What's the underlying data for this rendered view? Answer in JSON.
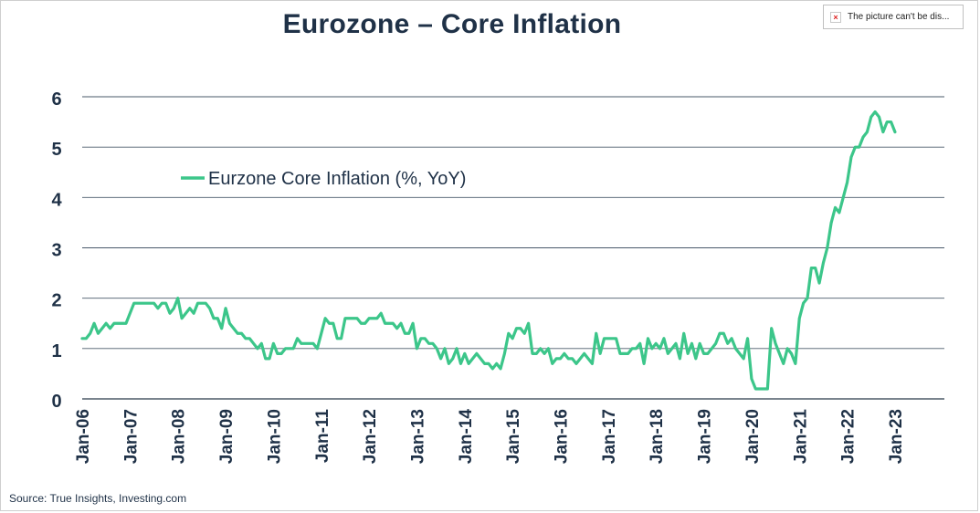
{
  "header": {
    "title": "Eurozone – Core Inflation",
    "broken_image_text": "The picture can't be dis..."
  },
  "footer": {
    "source": "Source: True Insights, Investing.com"
  },
  "chart_data": {
    "type": "line",
    "title": "Eurozone – Core Inflation",
    "xlabel": "",
    "ylabel": "",
    "ylim": [
      0,
      6
    ],
    "yticks": [
      "0",
      "1",
      "2",
      "3",
      "4",
      "5",
      "6"
    ],
    "xticks": [
      "Jan-06",
      "Jan-07",
      "Jan-08",
      "Jan-09",
      "Jan-10",
      "Jan-11",
      "Jan-12",
      "Jan-13",
      "Jan-14",
      "Jan-15",
      "Jan-16",
      "Jan-17",
      "Jan-18",
      "Jan-19",
      "Jan-20",
      "Jan-21",
      "Jan-22",
      "Jan-23"
    ],
    "grid": true,
    "legend": "upper-left",
    "x_start": "Jan-06",
    "x_end": "Oct-23",
    "series": [
      {
        "name": "Eurzone Core Inflation (%, YoY)",
        "color": "#3cc68a",
        "values": [
          1.2,
          1.2,
          1.3,
          1.5,
          1.3,
          1.4,
          1.5,
          1.4,
          1.5,
          1.5,
          1.5,
          1.5,
          1.7,
          1.9,
          1.9,
          1.9,
          1.9,
          1.9,
          1.9,
          1.8,
          1.9,
          1.9,
          1.7,
          1.8,
          2.0,
          1.6,
          1.7,
          1.8,
          1.7,
          1.9,
          1.9,
          1.9,
          1.8,
          1.6,
          1.6,
          1.4,
          1.8,
          1.5,
          1.4,
          1.3,
          1.3,
          1.2,
          1.2,
          1.1,
          1.0,
          1.1,
          0.8,
          0.8,
          1.1,
          0.9,
          0.9,
          1.0,
          1.0,
          1.0,
          1.2,
          1.1,
          1.1,
          1.1,
          1.1,
          1.0,
          1.3,
          1.6,
          1.5,
          1.5,
          1.2,
          1.2,
          1.6,
          1.6,
          1.6,
          1.6,
          1.5,
          1.5,
          1.6,
          1.6,
          1.6,
          1.7,
          1.5,
          1.5,
          1.5,
          1.4,
          1.5,
          1.3,
          1.3,
          1.5,
          1.0,
          1.2,
          1.2,
          1.1,
          1.1,
          1.0,
          0.8,
          1.0,
          0.7,
          0.8,
          1.0,
          0.7,
          0.9,
          0.7,
          0.8,
          0.9,
          0.8,
          0.7,
          0.7,
          0.6,
          0.7,
          0.6,
          0.9,
          1.3,
          1.2,
          1.4,
          1.4,
          1.3,
          1.5,
          0.9,
          0.9,
          1.0,
          0.9,
          1.0,
          0.7,
          0.8,
          0.8,
          0.9,
          0.8,
          0.8,
          0.7,
          0.8,
          0.9,
          0.8,
          0.7,
          1.3,
          0.9,
          1.2,
          1.2,
          1.2,
          1.2,
          0.9,
          0.9,
          0.9,
          1.0,
          1.0,
          1.1,
          0.7,
          1.2,
          1.0,
          1.1,
          1.0,
          1.2,
          0.9,
          1.0,
          1.1,
          0.8,
          1.3,
          0.9,
          1.1,
          0.8,
          1.1,
          0.9,
          0.9,
          1.0,
          1.1,
          1.3,
          1.3,
          1.1,
          1.2,
          1.0,
          0.9,
          0.8,
          1.2,
          0.4,
          0.2,
          0.2,
          0.2,
          0.2,
          1.4,
          1.1,
          0.9,
          0.7,
          1.0,
          0.9,
          0.7,
          1.6,
          1.9,
          2.0,
          2.6,
          2.6,
          2.3,
          2.7,
          3.0,
          3.5,
          3.8,
          3.7,
          4.0,
          4.3,
          4.8,
          5.0,
          5.0,
          5.2,
          5.3,
          5.6,
          5.7,
          5.6,
          5.3,
          5.5,
          5.5,
          5.3
        ]
      }
    ]
  }
}
